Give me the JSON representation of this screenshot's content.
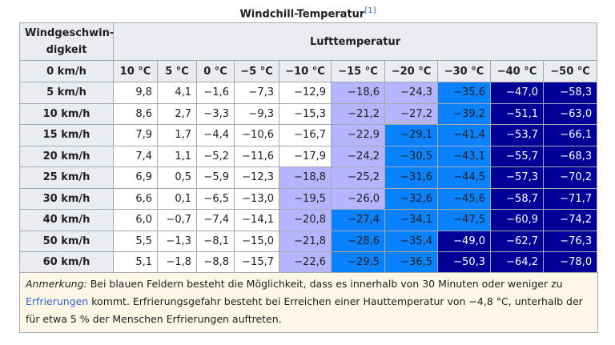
{
  "caption": {
    "title": "Windchill-Temperatur",
    "ref": "[1]"
  },
  "table": {
    "corner": "Windgeschwin-digkeit",
    "group_header": "Lufttemperatur",
    "first_row_label": "0 km/h",
    "columns": [
      "10 °C",
      "5 °C",
      "0 °C",
      "−5 °C",
      "−10 °C",
      "−15 °C",
      "−20 °C",
      "−30 °C",
      "−40 °C",
      "−50 °C"
    ],
    "rows": [
      {
        "label": "5 km/h",
        "cells": [
          "9,8",
          "4,1",
          "−1,6",
          "−7,3",
          "−12,9",
          "−18,6",
          "−24,3",
          "−35,6",
          "−47,0",
          "−58,3"
        ],
        "shades": "wwwwwllbnn"
      },
      {
        "label": "10 km/h",
        "cells": [
          "8,6",
          "2,7",
          "−3,3",
          "−9,3",
          "−15,3",
          "−21,2",
          "−27,2",
          "−39,2",
          "−51,1",
          "−63,0"
        ],
        "shades": "wwwwwllbnn"
      },
      {
        "label": "15 km/h",
        "cells": [
          "7,9",
          "1,7",
          "−4,4",
          "−10,6",
          "−16,7",
          "−22,9",
          "−29,1",
          "−41,4",
          "−53,7",
          "−66,1"
        ],
        "shades": "wwwwwlbbnn"
      },
      {
        "label": "20 km/h",
        "cells": [
          "7,4",
          "1,1",
          "−5,2",
          "−11,6",
          "−17,9",
          "−24,2",
          "−30,5",
          "−43,1",
          "−55,7",
          "−68,3"
        ],
        "shades": "wwwwwlbbnn"
      },
      {
        "label": "25 km/h",
        "cells": [
          "6,9",
          "0,5",
          "−5,9",
          "−12,3",
          "−18,8",
          "−25,2",
          "−31,6",
          "−44,5",
          "−57,3",
          "−70,2"
        ],
        "shades": "wwwwllbbnn"
      },
      {
        "label": "30 km/h",
        "cells": [
          "6,6",
          "0,1",
          "−6,5",
          "−13,0",
          "−19,5",
          "−26,0",
          "−32,6",
          "−45,6",
          "−58,7",
          "−71,7"
        ],
        "shades": "wwwwllbbnn"
      },
      {
        "label": "40 km/h",
        "cells": [
          "6,0",
          "−0,7",
          "−7,4",
          "−14,1",
          "−20,8",
          "−27,4",
          "−34,1",
          "−47,5",
          "−60,9",
          "−74,2"
        ],
        "shades": "wwwwlbbbnn"
      },
      {
        "label": "50 km/h",
        "cells": [
          "5,5",
          "−1,3",
          "−8,1",
          "−15,0",
          "−21,8",
          "−28,6",
          "−35,4",
          "−49,0",
          "−62,7",
          "−76,3"
        ],
        "shades": "wwwwlbbnnn"
      },
      {
        "label": "60 km/h",
        "cells": [
          "5,1",
          "−1,8",
          "−8,8",
          "−15,7",
          "−22,6",
          "−29,5",
          "−36,5",
          "−50,3",
          "−64,2",
          "−78,0"
        ],
        "shades": "wwwwlbbnnn"
      }
    ],
    "palette": {
      "w": {
        "bg": "#ffffff",
        "fg": "#202122"
      },
      "l": {
        "bg": "#b4b4ff",
        "fg": "#202122"
      },
      "b": {
        "bg": "#0a82ff",
        "fg": "#202122"
      },
      "n": {
        "bg": "#000096",
        "fg": "#ffffff"
      }
    }
  },
  "note": {
    "label": "Anmerkung:",
    "text1": " Bei blauen Feldern besteht die Möglichkeit, dass es innerhalb von 30 Minuten oder weniger zu ",
    "link": "Erfrierungen",
    "text2": " kommt. Erfrierungsgefahr besteht bei Erreichen einer Hauttemperatur von −4,8 °C, unterhalb der für etwa 5 % der Menschen Erfrierungen auftreten."
  }
}
